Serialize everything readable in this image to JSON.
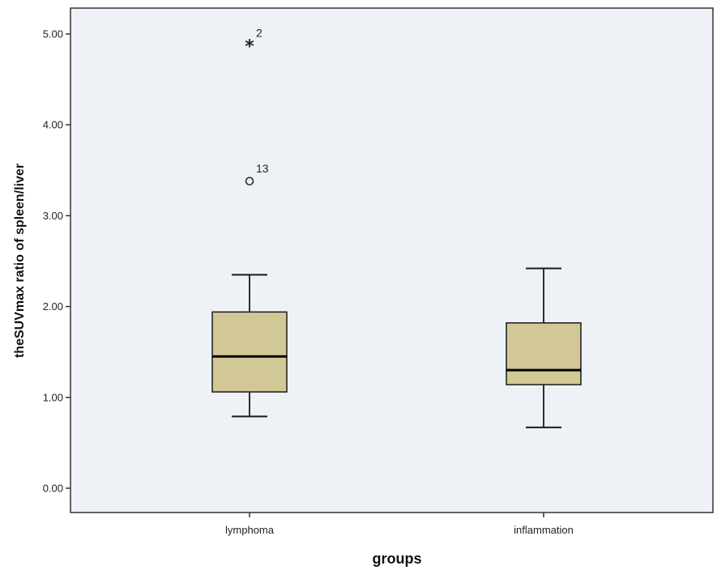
{
  "chart_data": {
    "type": "boxplot",
    "xlabel": "groups",
    "ylabel": "theSUVmax ratio of spleen/liver",
    "ylim": [
      -0.25,
      5.35
    ],
    "yticks": [
      0.0,
      1.0,
      2.0,
      3.0,
      4.0,
      5.0
    ],
    "ytick_labels": [
      "0.00",
      "1.00",
      "2.00",
      "3.00",
      "4.00",
      "5.00"
    ],
    "categories": [
      "lymphoma",
      "inflammation"
    ],
    "boxes": [
      {
        "category": "lymphoma",
        "whisker_low": 0.79,
        "q1": 1.06,
        "median": 1.45,
        "q3": 1.94,
        "whisker_high": 2.35,
        "outliers": [
          {
            "value": 3.38,
            "marker": "circle",
            "label": "13"
          },
          {
            "value": 4.89,
            "marker": "star",
            "label": "2"
          }
        ]
      },
      {
        "category": "inflammation",
        "whisker_low": 0.67,
        "q1": 1.14,
        "median": 1.3,
        "q3": 1.82,
        "whisker_high": 2.42,
        "outliers": []
      }
    ],
    "colors": {
      "plot_background": "#eef1f5",
      "box_fill": "#d2c896",
      "line": "#1a1a1a"
    },
    "grid": false,
    "legend": "none"
  }
}
